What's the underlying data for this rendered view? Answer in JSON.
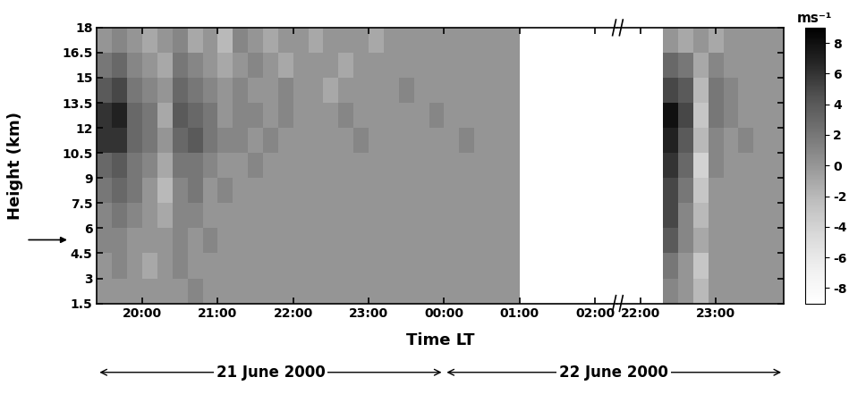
{
  "chart_data": {
    "type": "heatmap",
    "x_label": "Time LT",
    "y_label": "Height (km)",
    "ylim": [
      1.5,
      18
    ],
    "yticks": [
      1.5,
      3,
      4.5,
      6,
      7.5,
      9,
      10.5,
      12,
      13.5,
      15,
      16.5,
      18
    ],
    "marker_height": 5.3,
    "segments": [
      {
        "xlim": [
          19.4,
          26.3
        ],
        "xticks": [
          {
            "value": 20,
            "label": "20:00"
          },
          {
            "value": 21,
            "label": "21:00"
          },
          {
            "value": 22,
            "label": "22:00"
          },
          {
            "value": 23,
            "label": "23:00"
          },
          {
            "value": 24,
            "label": "00:00"
          },
          {
            "value": 25,
            "label": "01:00"
          },
          {
            "value": 26,
            "label": "02:00"
          }
        ],
        "x": [
          19.5,
          19.7,
          19.9,
          20.1,
          20.3,
          20.5,
          20.7,
          20.9,
          21.1,
          21.3,
          21.5,
          21.7,
          21.9,
          22.1,
          22.3,
          22.5,
          22.7,
          22.9,
          23.1,
          23.3,
          23.5,
          23.7,
          23.9,
          24.1,
          24.3,
          24.5,
          24.7,
          24.9
        ],
        "y": [
          2.25,
          3.75,
          5.25,
          6.75,
          8.25,
          9.75,
          11.25,
          12.75,
          14.25,
          15.75,
          17.25
        ],
        "values": [
          [
            0,
            0,
            0,
            0,
            0,
            0,
            1,
            0,
            0,
            0,
            0,
            0,
            0,
            0,
            0,
            0,
            0,
            0,
            0,
            0,
            0,
            0,
            0,
            0,
            0,
            0,
            0,
            0
          ],
          [
            0,
            1,
            0,
            -1,
            0,
            1,
            0,
            0,
            0,
            0,
            0,
            0,
            0,
            0,
            0,
            0,
            0,
            0,
            0,
            0,
            0,
            0,
            0,
            0,
            0,
            0,
            0,
            0
          ],
          [
            1,
            1,
            0,
            0,
            0,
            1,
            0,
            1,
            0,
            0,
            0,
            0,
            0,
            0,
            0,
            0,
            0,
            0,
            0,
            0,
            0,
            0,
            0,
            0,
            0,
            0,
            0,
            0
          ],
          [
            1,
            2,
            1,
            0,
            -1,
            1,
            1,
            0,
            0,
            0,
            0,
            0,
            0,
            0,
            0,
            0,
            0,
            0,
            0,
            0,
            0,
            0,
            0,
            0,
            0,
            0,
            0,
            0
          ],
          [
            2,
            3,
            2,
            0,
            -2,
            1,
            2,
            0,
            1,
            0,
            0,
            0,
            0,
            0,
            0,
            0,
            0,
            0,
            0,
            0,
            0,
            0,
            0,
            0,
            0,
            0,
            0,
            0
          ],
          [
            3,
            4,
            2,
            1,
            -1,
            2,
            2,
            1,
            0,
            0,
            1,
            0,
            0,
            0,
            0,
            0,
            0,
            0,
            0,
            0,
            0,
            0,
            0,
            0,
            0,
            0,
            0,
            0
          ],
          [
            6,
            6,
            3,
            2,
            0,
            3,
            4,
            2,
            1,
            1,
            0,
            1,
            0,
            0,
            0,
            0,
            0,
            1,
            0,
            0,
            0,
            0,
            0,
            0,
            1,
            0,
            0,
            0
          ],
          [
            6,
            7,
            3,
            2,
            -1,
            4,
            3,
            2,
            0,
            1,
            1,
            0,
            1,
            0,
            0,
            0,
            1,
            0,
            0,
            0,
            0,
            0,
            1,
            0,
            0,
            0,
            0,
            0
          ],
          [
            4,
            5,
            2,
            1,
            0,
            3,
            2,
            1,
            0,
            1,
            0,
            0,
            1,
            0,
            0,
            -1,
            0,
            0,
            0,
            0,
            1,
            0,
            0,
            0,
            0,
            0,
            0,
            0
          ],
          [
            2,
            3,
            1,
            0,
            -1,
            2,
            1,
            0,
            -1,
            0,
            1,
            0,
            -1,
            0,
            0,
            0,
            -1,
            0,
            0,
            0,
            0,
            0,
            0,
            0,
            0,
            0,
            0,
            0
          ],
          [
            0,
            1,
            0,
            -1,
            0,
            1,
            -1,
            0,
            -2,
            1,
            0,
            -1,
            0,
            0,
            -1,
            0,
            0,
            0,
            -1,
            0,
            0,
            0,
            0,
            0,
            0,
            0,
            0,
            0
          ]
        ]
      },
      {
        "xlim": [
          45.7,
          47.9
        ],
        "xticks": [
          {
            "value": 46,
            "label": "22:00"
          },
          {
            "value": 47,
            "label": "23:00"
          }
        ],
        "x": [
          46.4,
          46.6,
          46.8,
          47.0,
          47.2,
          47.4,
          47.6,
          47.8
        ],
        "y": [
          2.25,
          3.75,
          5.25,
          6.75,
          8.25,
          9.75,
          11.25,
          12.75,
          14.25,
          15.75,
          17.25
        ],
        "values": [
          [
            1,
            0,
            -2,
            0,
            0,
            0,
            0,
            0
          ],
          [
            2,
            0,
            -3,
            0,
            0,
            0,
            0,
            0
          ],
          [
            4,
            1,
            -1,
            0,
            0,
            0,
            0,
            0
          ],
          [
            5,
            1,
            -2,
            0,
            0,
            0,
            0,
            0
          ],
          [
            5,
            2,
            -3,
            0,
            0,
            0,
            0,
            0
          ],
          [
            6,
            3,
            -4,
            1,
            0,
            0,
            0,
            0
          ],
          [
            7,
            4,
            -2,
            1,
            0,
            1,
            0,
            0
          ],
          [
            8,
            5,
            -3,
            2,
            1,
            0,
            0,
            0
          ],
          [
            5,
            4,
            -2,
            2,
            1,
            0,
            0,
            0
          ],
          [
            3,
            2,
            -1,
            1,
            0,
            0,
            0,
            0
          ],
          [
            0,
            -1,
            0,
            -1,
            0,
            0,
            0,
            0
          ]
        ]
      }
    ],
    "dates": [
      {
        "label": "21 June 2000",
        "from": 19.4,
        "to": 24
      },
      {
        "label": "22 June 2000",
        "from": 24,
        "to": 47.9
      }
    ],
    "colorbar": {
      "label": "ms⁻¹",
      "lim": [
        -9,
        9
      ],
      "ticks": [
        -8,
        -6,
        -4,
        -2,
        0,
        2,
        4,
        6,
        8
      ]
    }
  }
}
